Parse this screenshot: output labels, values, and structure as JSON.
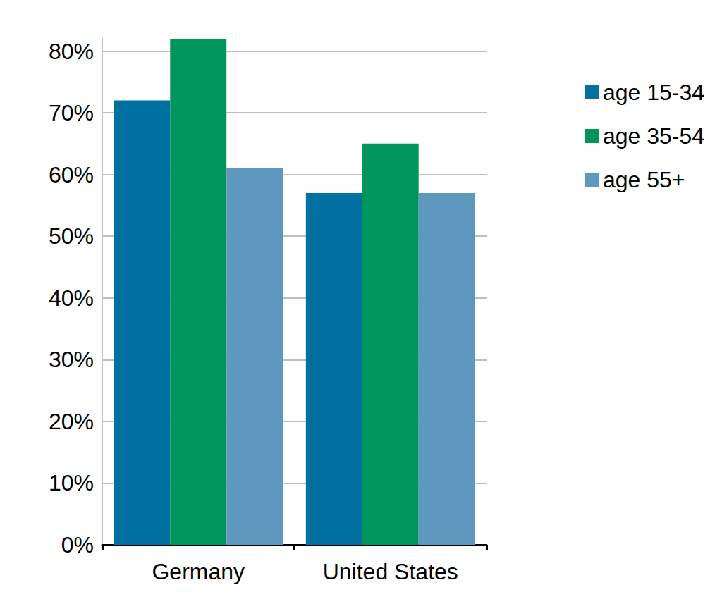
{
  "chart_data": {
    "type": "bar",
    "categories": [
      "Germany",
      "United States"
    ],
    "series": [
      {
        "name": "age 15-34",
        "color": "#0070a0",
        "values": [
          72,
          57
        ]
      },
      {
        "name": "age 35-54",
        "color": "#00965a",
        "values": [
          82,
          65
        ]
      },
      {
        "name": "age 55+",
        "color": "#5f98bf",
        "values": [
          61,
          57
        ]
      }
    ],
    "ylim": [
      0,
      82
    ],
    "yticks": [
      {
        "value": 0,
        "label": "0%"
      },
      {
        "value": 10,
        "label": "10%"
      },
      {
        "value": 20,
        "label": "20%"
      },
      {
        "value": 30,
        "label": "30%"
      },
      {
        "value": 40,
        "label": "40%"
      },
      {
        "value": 50,
        "label": "50%"
      },
      {
        "value": 60,
        "label": "60%"
      },
      {
        "value": 70,
        "label": "70%"
      },
      {
        "value": 80,
        "label": "80%"
      }
    ],
    "grid": true,
    "legend": "right"
  }
}
